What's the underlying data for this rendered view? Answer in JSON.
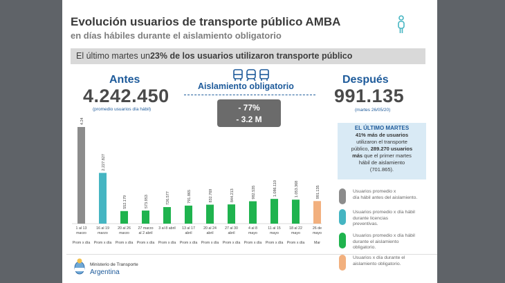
{
  "title": "Evolución usuarios de transporte público AMBA",
  "subtitle": "en días hábiles durante el aislamiento obligatorio",
  "banner": {
    "prefix": "El último martes un ",
    "highlight": "23% de los usuarios utilizaron transporte público"
  },
  "antes": {
    "label": "Antes",
    "value": "4.242.450",
    "note": "(promedio usuarios día hábil)"
  },
  "despues": {
    "label": "Después",
    "value": "991.135",
    "note": "(martes 26/05/20)"
  },
  "aislamiento_label": "Aislamiento obligatorio",
  "delta": {
    "pct": "- 77%",
    "abs": "- 3.2 M"
  },
  "info_box": {
    "heading": "EL ÚLTIMO MARTES",
    "line1": "41% más de usuarios",
    "line2": "utilizaron el transporte",
    "line3a": "público, ",
    "line3b": "289.270 usuarios",
    "line4a": "más",
    "line4b": " que el primer martes",
    "line5": "hábil de aislamiento",
    "line6": "(701.865)."
  },
  "legend": [
    {
      "text1": "Usuarios promedio x",
      "text2": "día hábil antes del aislamiento.",
      "text3": "",
      "color": "#8c8c8c"
    },
    {
      "text1": "Usuarios promedio x día hábil",
      "text2": "durante licencias",
      "text3": "preventivas.",
      "color": "#45b5c2"
    },
    {
      "text1": "Usuarios promedio x día hábil",
      "text2": "durante el aislamiento",
      "text3": "obligatorio.",
      "color": "#1fb34e"
    },
    {
      "text1": "Usuarios x día durante el",
      "text2": "aislamiento obligatorio.",
      "text3": "",
      "color": "#f2b07e"
    }
  ],
  "footer": {
    "ministry": "Ministerio de Transporte",
    "country": "Argentina"
  },
  "chart_data": {
    "type": "bar",
    "categories": [
      [
        "1 al 13",
        "marzo"
      ],
      [
        "16 al 19",
        "marzo"
      ],
      [
        "20 al 26",
        "marzo"
      ],
      [
        "27 marzo",
        "al 2 abril"
      ],
      [
        "3 al 8 abril"
      ],
      [
        "13 al 17",
        "abril"
      ],
      [
        "20 al 24",
        "abril"
      ],
      [
        "27 al 30",
        "abril"
      ],
      [
        "4 al 8",
        "mayo"
      ],
      [
        "11 al 15",
        "mayo"
      ],
      [
        "18 al 22",
        "mayo"
      ],
      [
        "26 de",
        "mayo"
      ]
    ],
    "bottom_labels": [
      "Prom x día",
      "Prom x día",
      "Prom x día",
      "Prom x día",
      "Prom x día",
      "Prom x día",
      "Prom x día",
      "Prom x día",
      "Prom x día",
      "Prom x día",
      "Prom x día",
      "Mar"
    ],
    "values": [
      4242450,
      2227827,
      552179,
      573953,
      726577,
      791865,
      832769,
      844213,
      982535,
      1086110,
      1053368,
      991135
    ],
    "value_labels": [
      "4.242.450",
      "2.227.827",
      "552.179",
      "573.953",
      "726.577",
      "791.865",
      "832.769",
      "844.213",
      "982.535",
      "1.086.110",
      "1.053.368",
      "991.135"
    ],
    "colors": [
      "#8c8c8c",
      "#45b5c2",
      "#1fb34e",
      "#1fb34e",
      "#1fb34e",
      "#1fb34e",
      "#1fb34e",
      "#1fb34e",
      "#1fb34e",
      "#1fb34e",
      "#1fb34e",
      "#f2b07e"
    ],
    "ylim": [
      0,
      4242450
    ],
    "title": "",
    "xlabel": "",
    "ylabel": ""
  }
}
